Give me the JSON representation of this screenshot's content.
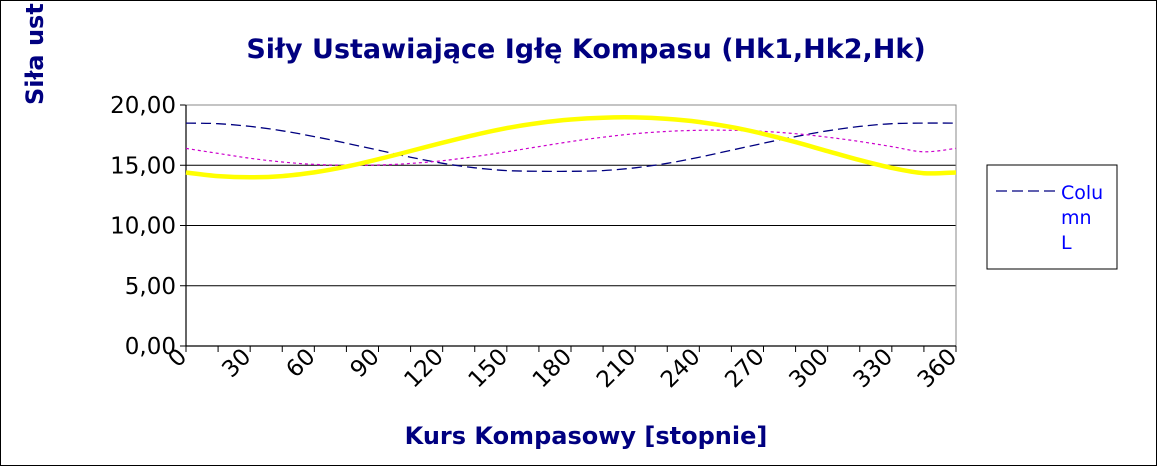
{
  "chart_data": {
    "type": "line",
    "title": "Siły Ustawiające Igłę Kompasu (Hk1,Hk2,Hk)",
    "xlabel": "Kurs Kompasowy  [stopnie]",
    "ylabel": "Siła ust",
    "x": [
      0,
      15,
      30,
      45,
      60,
      75,
      90,
      105,
      120,
      135,
      150,
      165,
      180,
      195,
      210,
      225,
      240,
      255,
      270,
      285,
      300,
      315,
      330,
      345,
      360
    ],
    "x_ticks": [
      "0",
      "30",
      "60",
      "90",
      "120",
      "150",
      "180",
      "210",
      "240",
      "270",
      "300",
      "330",
      "360"
    ],
    "y_ticks": [
      "0,00",
      "5,00",
      "10,00",
      "15,00",
      "20,00"
    ],
    "xlim": [
      0,
      360
    ],
    "ylim": [
      0,
      20
    ],
    "grid": "horizontal",
    "legend_position": "right",
    "legend_label": "Column L",
    "colors": {
      "title": "#000080",
      "series_dashed": "#000080",
      "series_dotted": "#cc00cc",
      "series_thick": "#ffff00",
      "legend_text": "#0000ff"
    },
    "series": [
      {
        "style": "dashed",
        "values": [
          18.5,
          18.45,
          18.22,
          17.86,
          17.38,
          16.83,
          16.25,
          15.67,
          15.16,
          14.79,
          14.56,
          14.5,
          14.5,
          14.56,
          14.79,
          15.16,
          15.67,
          16.25,
          16.83,
          17.38,
          17.86,
          18.22,
          18.45,
          18.5,
          18.5
        ]
      },
      {
        "style": "dotted",
        "values": [
          16.4,
          15.98,
          15.58,
          15.27,
          15.07,
          15.0,
          15.02,
          15.15,
          15.38,
          15.72,
          16.12,
          16.55,
          16.97,
          17.33,
          17.62,
          17.81,
          17.9,
          17.9,
          17.81,
          17.62,
          17.33,
          16.97,
          16.55,
          16.12,
          16.4
        ]
      },
      {
        "style": "thick",
        "values": [
          14.4,
          14.1,
          14.0,
          14.1,
          14.41,
          14.89,
          15.5,
          16.18,
          16.87,
          17.52,
          18.08,
          18.51,
          18.8,
          18.95,
          18.97,
          18.85,
          18.59,
          18.17,
          17.6,
          16.92,
          16.17,
          15.43,
          14.78,
          14.34,
          14.4
        ]
      }
    ]
  }
}
